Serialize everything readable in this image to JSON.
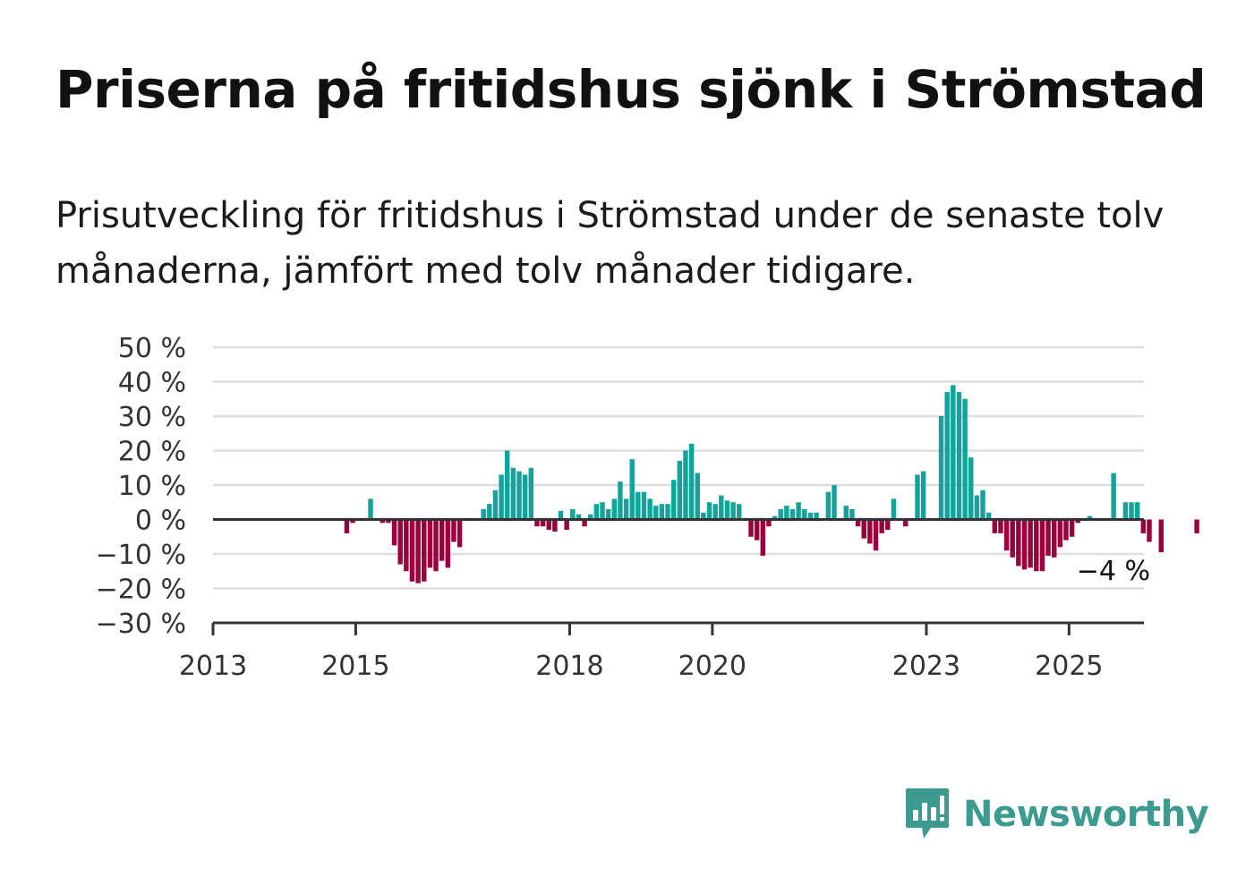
{
  "header": {
    "title": "Priserna på fritidshus sjönk i Strömstad",
    "subtitle": "Prisutveckling för fritidshus i Strömstad under de senaste tolv månaderna, jämfört med tolv månader tidigare."
  },
  "branding": {
    "name": "Newsworthy"
  },
  "colors": {
    "positive": "#14a39a",
    "negative": "#99003d",
    "grid": "#dddddd",
    "axis": "#333333",
    "brand": "#3d9a8e"
  },
  "chart_data": {
    "type": "bar",
    "title": "",
    "xlabel": "",
    "ylabel": "",
    "ylim": [
      -30,
      50
    ],
    "xlim": [
      2013,
      2026.05
    ],
    "y_ticks": [
      50,
      40,
      30,
      20,
      10,
      0,
      -10,
      -20,
      -30
    ],
    "y_tick_labels": [
      "50 %",
      "40 %",
      "30 %",
      "20 %",
      "10 %",
      "0 %",
      "−10 %",
      "−20 %",
      "−30 %"
    ],
    "x_ticks": [
      2013,
      2015,
      2018,
      2020,
      2023,
      2025
    ],
    "x_tick_labels": [
      "2013",
      "2015",
      "2018",
      "2020",
      "2023",
      "2025"
    ],
    "grid": true,
    "annotation": {
      "text": "−4 %",
      "x": 2025.08,
      "y": -4
    },
    "series": [
      {
        "start_year": 2013,
        "step_months": 1,
        "values": [
          null,
          null,
          null,
          null,
          null,
          null,
          null,
          null,
          null,
          null,
          null,
          null,
          null,
          null,
          null,
          null,
          null,
          null,
          null,
          null,
          null,
          null,
          -4,
          -1,
          0,
          0,
          6,
          0,
          -1,
          -1,
          -7.5,
          -13,
          -15,
          -18,
          -18.5,
          -18,
          -14,
          -15,
          -12,
          -14,
          -6.5,
          -8,
          0,
          0,
          0,
          3,
          4.5,
          8.5,
          13,
          20,
          15,
          14,
          13,
          15,
          -2,
          -2,
          -3,
          -3.5,
          2.5,
          -3,
          3,
          1.5,
          -2,
          1.5,
          4.5,
          5,
          3,
          6,
          11,
          6,
          17.5,
          8,
          8,
          6,
          4,
          4.5,
          4.5,
          11.5,
          17,
          20,
          22,
          13.5,
          2,
          5,
          4.5,
          7,
          5.5,
          5,
          4.5,
          0,
          -5,
          -6,
          -10.5,
          -2,
          1,
          3,
          4,
          3,
          5,
          3,
          2,
          2,
          0,
          8,
          10,
          0,
          4,
          3,
          -2,
          -5.5,
          -7,
          -9,
          -4,
          -3,
          6,
          0,
          -2,
          0,
          13,
          14,
          0,
          0,
          30,
          37,
          39,
          37,
          35,
          18,
          7,
          8.5,
          2,
          -4,
          -4,
          -9,
          -11,
          -13.5,
          -14.5,
          -14,
          -15,
          -15,
          -10.5,
          -11,
          -8,
          -6,
          -5,
          -1,
          0,
          1,
          0,
          0,
          0,
          13.5,
          0,
          5,
          5,
          5,
          -4,
          -6.5,
          0,
          -9.5,
          0,
          0,
          0,
          0,
          0,
          -4
        ]
      }
    ]
  }
}
